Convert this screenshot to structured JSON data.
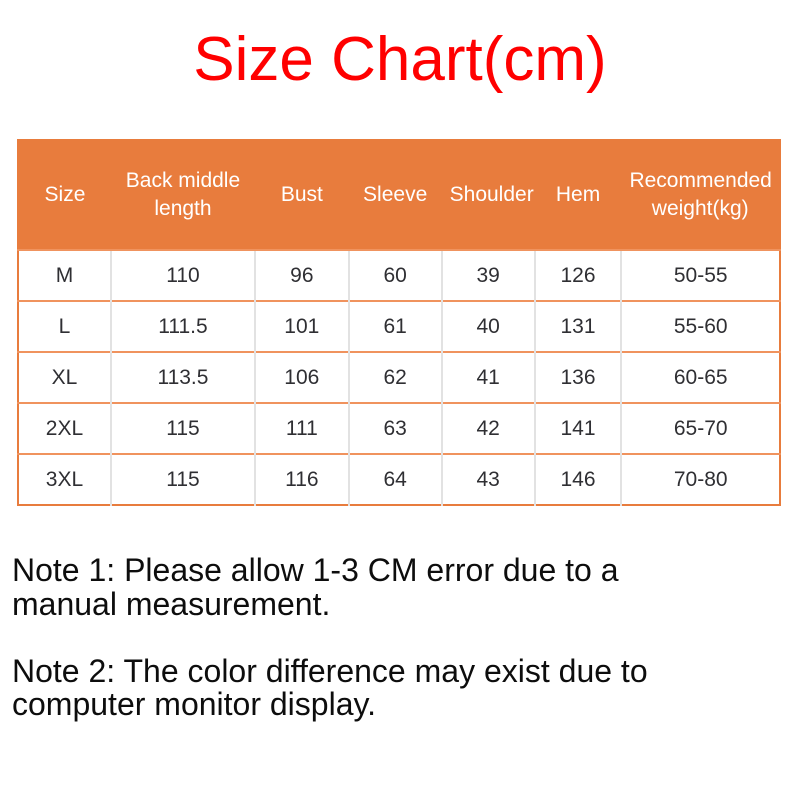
{
  "title": {
    "text": "Size Chart(cm)",
    "color": "#ff0000"
  },
  "chart_data": {
    "type": "table",
    "title": "Size Chart(cm)",
    "units": "cm",
    "columns": [
      "Size",
      "Back middle length",
      "Bust",
      "Sleeve",
      "Shoulder",
      "Hem",
      "Recommended weight(kg)"
    ],
    "rows": [
      [
        "M",
        "110",
        "96",
        "60",
        "39",
        "126",
        "50-55"
      ],
      [
        "L",
        "111.5",
        "101",
        "61",
        "40",
        "131",
        "55-60"
      ],
      [
        "XL",
        "113.5",
        "106",
        "62",
        "41",
        "136",
        "60-65"
      ],
      [
        "2XL",
        "115",
        "111",
        "63",
        "42",
        "141",
        "65-70"
      ],
      [
        "3XL",
        "115",
        "116",
        "64",
        "43",
        "146",
        "70-80"
      ]
    ],
    "colors": {
      "header_background": "#e87c3d",
      "header_text": "#ffffff",
      "row_divider": "#f0935e",
      "column_divider": "#e2e2e2",
      "outer_border": "#e87c3d",
      "cell_text": "#2f2f33",
      "title_text": "#ff0000"
    }
  },
  "notes": [
    {
      "lines": [
        "Note 1: Please allow 1-3 CM error due to a",
        "manual measurement."
      ]
    },
    {
      "lines": [
        "Note 2: The color difference may exist due to",
        "computer monitor display."
      ]
    }
  ]
}
